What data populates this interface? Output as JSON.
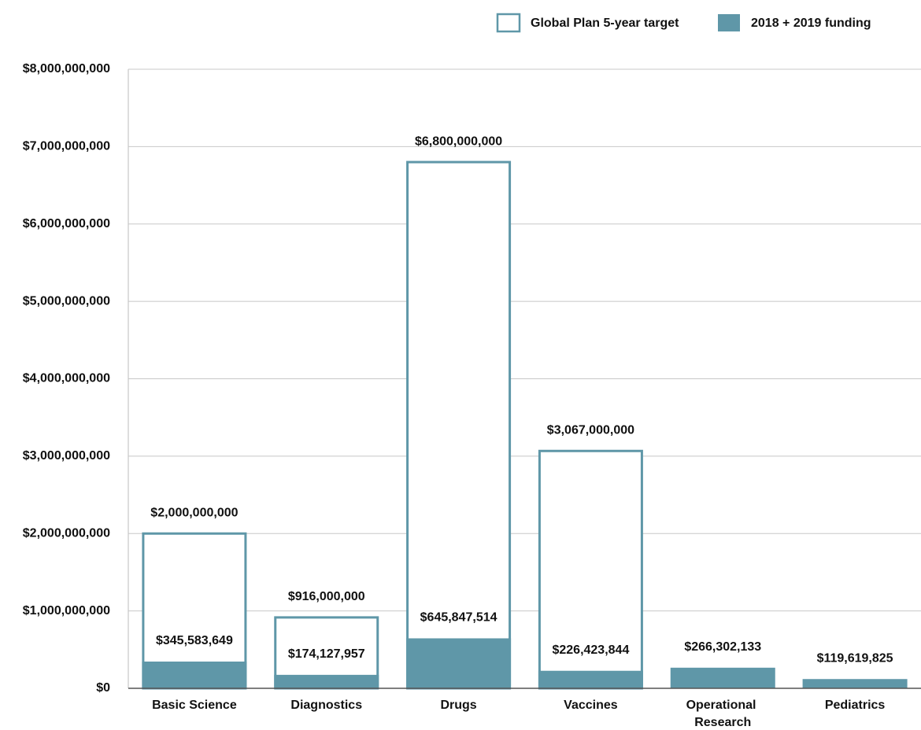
{
  "chart_data": {
    "type": "bar",
    "categories": [
      "Basic Science",
      "Diagnostics",
      "Drugs",
      "Vaccines",
      "Operational Research",
      "Pediatrics"
    ],
    "series": [
      {
        "name": "Global Plan 5-year target",
        "color": "#5f97a8",
        "style": "outline",
        "values": [
          2000000000,
          916000000,
          6800000000,
          3067000000,
          null,
          null
        ],
        "value_labels": [
          "$2,000,000,000",
          "$916,000,000",
          "$6,800,000,000",
          "$3,067,000,000",
          null,
          null
        ]
      },
      {
        "name": "2018 + 2019 funding",
        "color": "#5f97a8",
        "style": "filled",
        "values": [
          345583649,
          174127957,
          645847514,
          226423844,
          266302133,
          119619825
        ],
        "value_labels": [
          "$345,583,649",
          "$174,127,957",
          "$645,847,514",
          "$226,423,844",
          "$266,302,133",
          "$119,619,825"
        ]
      }
    ],
    "ylim": [
      0,
      8000000000
    ],
    "yticks": [
      {
        "value": 0,
        "label": "$0"
      },
      {
        "value": 1000000000,
        "label": "$1,000,000,000"
      },
      {
        "value": 2000000000,
        "label": "$2,000,000,000"
      },
      {
        "value": 3000000000,
        "label": "$3,000,000,000"
      },
      {
        "value": 4000000000,
        "label": "$4,000,000,000"
      },
      {
        "value": 5000000000,
        "label": "$5,000,000,000"
      },
      {
        "value": 6000000000,
        "label": "$6,000,000,000"
      },
      {
        "value": 7000000000,
        "label": "$7,000,000,000"
      },
      {
        "value": 8000000000,
        "label": "$8,000,000,000"
      }
    ],
    "grid": true,
    "legend": "top-right"
  }
}
